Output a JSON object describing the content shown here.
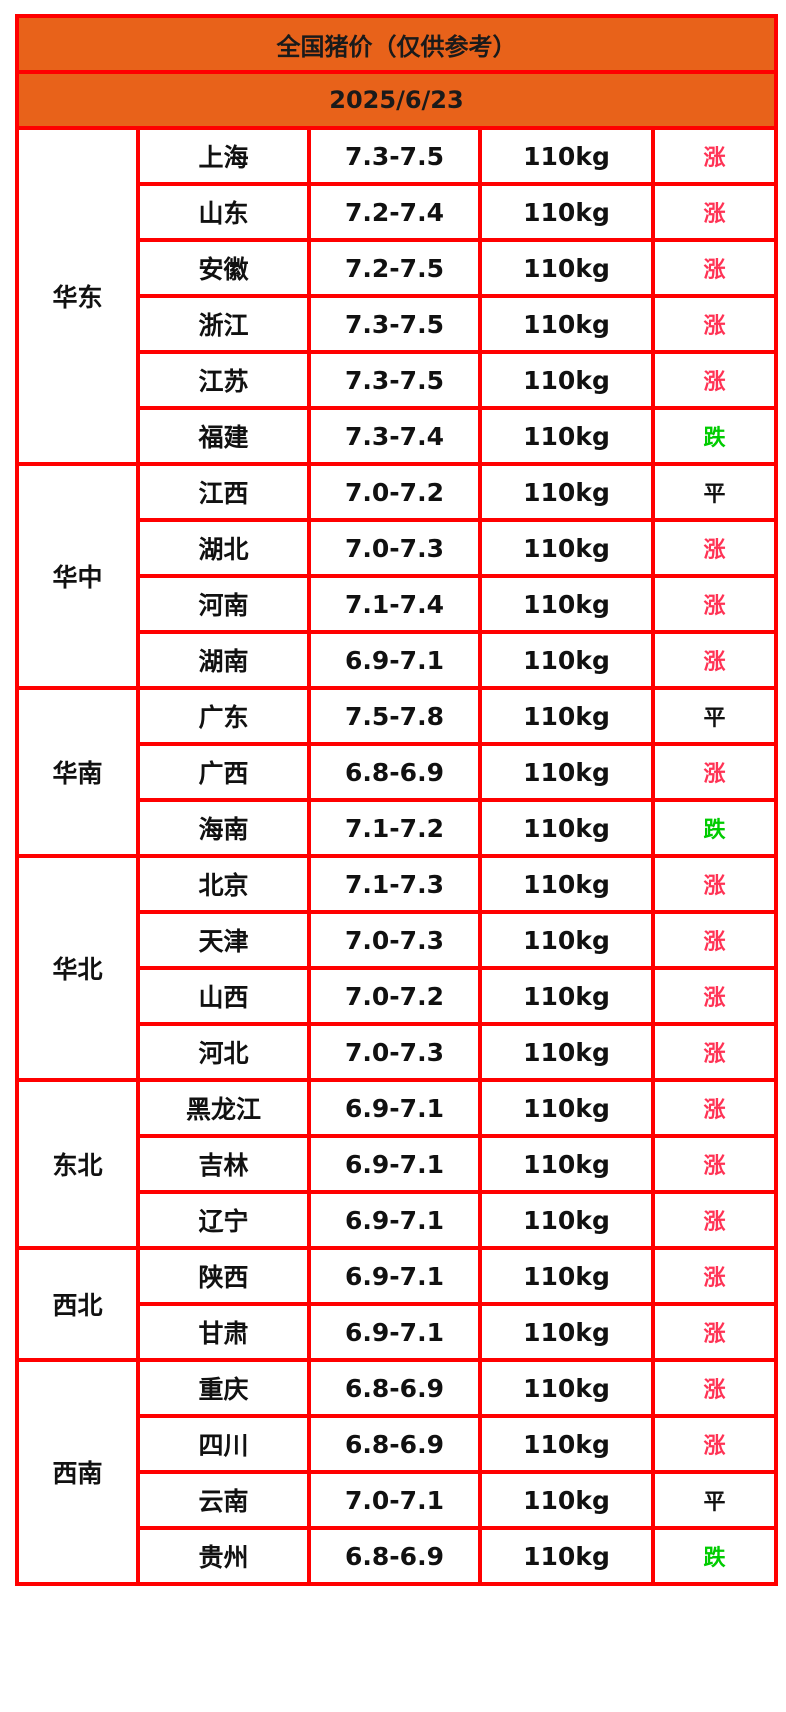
{
  "title": "全国猪价（仅供参考）",
  "date": "2025/6/23",
  "colors": {
    "header_bg": "#e8621a",
    "border": "#ff0000",
    "涨": "#ff3355",
    "跌": "#00cc00",
    "平": "#111111"
  },
  "regions": [
    {
      "name": "华东",
      "rows": [
        {
          "province": "上海",
          "price": "7.3-7.5",
          "weight": "110kg",
          "trend": "涨"
        },
        {
          "province": "山东",
          "price": "7.2-7.4",
          "weight": "110kg",
          "trend": "涨"
        },
        {
          "province": "安徽",
          "price": "7.2-7.5",
          "weight": "110kg",
          "trend": "涨"
        },
        {
          "province": "浙江",
          "price": "7.3-7.5",
          "weight": "110kg",
          "trend": "涨"
        },
        {
          "province": "江苏",
          "price": "7.3-7.5",
          "weight": "110kg",
          "trend": "涨"
        },
        {
          "province": "福建",
          "price": "7.3-7.4",
          "weight": "110kg",
          "trend": "跌"
        }
      ]
    },
    {
      "name": "华中",
      "rows": [
        {
          "province": "江西",
          "price": "7.0-7.2",
          "weight": "110kg",
          "trend": "平"
        },
        {
          "province": "湖北",
          "price": "7.0-7.3",
          "weight": "110kg",
          "trend": "涨"
        },
        {
          "province": "河南",
          "price": "7.1-7.4",
          "weight": "110kg",
          "trend": "涨"
        },
        {
          "province": "湖南",
          "price": "6.9-7.1",
          "weight": "110kg",
          "trend": "涨"
        }
      ]
    },
    {
      "name": "华南",
      "rows": [
        {
          "province": "广东",
          "price": "7.5-7.8",
          "weight": "110kg",
          "trend": "平"
        },
        {
          "province": "广西",
          "price": "6.8-6.9",
          "weight": "110kg",
          "trend": "涨"
        },
        {
          "province": "海南",
          "price": "7.1-7.2",
          "weight": "110kg",
          "trend": "跌"
        }
      ]
    },
    {
      "name": "华北",
      "rows": [
        {
          "province": "北京",
          "price": "7.1-7.3",
          "weight": "110kg",
          "trend": "涨"
        },
        {
          "province": "天津",
          "price": "7.0-7.3",
          "weight": "110kg",
          "trend": "涨"
        },
        {
          "province": "山西",
          "price": "7.0-7.2",
          "weight": "110kg",
          "trend": "涨"
        },
        {
          "province": "河北",
          "price": "7.0-7.3",
          "weight": "110kg",
          "trend": "涨"
        }
      ]
    },
    {
      "name": "东北",
      "rows": [
        {
          "province": "黑龙江",
          "price": "6.9-7.1",
          "weight": "110kg",
          "trend": "涨"
        },
        {
          "province": "吉林",
          "price": "6.9-7.1",
          "weight": "110kg",
          "trend": "涨"
        },
        {
          "province": "辽宁",
          "price": "6.9-7.1",
          "weight": "110kg",
          "trend": "涨"
        }
      ]
    },
    {
      "name": "西北",
      "rows": [
        {
          "province": "陕西",
          "price": "6.9-7.1",
          "weight": "110kg",
          "trend": "涨"
        },
        {
          "province": "甘肃",
          "price": "6.9-7.1",
          "weight": "110kg",
          "trend": "涨"
        }
      ]
    },
    {
      "name": "西南",
      "rows": [
        {
          "province": "重庆",
          "price": "6.8-6.9",
          "weight": "110kg",
          "trend": "涨"
        },
        {
          "province": "四川",
          "price": "6.8-6.9",
          "weight": "110kg",
          "trend": "涨"
        },
        {
          "province": "云南",
          "price": "7.0-7.1",
          "weight": "110kg",
          "trend": "平"
        },
        {
          "province": "贵州",
          "price": "6.8-6.9",
          "weight": "110kg",
          "trend": "跌"
        }
      ]
    }
  ]
}
